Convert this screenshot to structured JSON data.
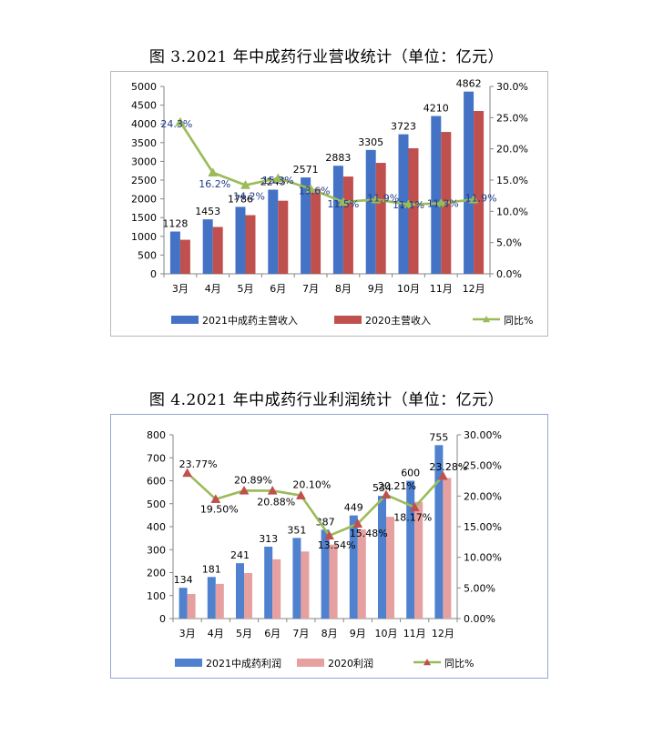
{
  "titles": {
    "chart1": "图 3.2021 年中成药行业营收统计（单位：亿元）",
    "chart2": "图 4.2021 年中成药行业利润统计（单位：亿元）"
  },
  "chart_data": [
    {
      "type": "bar",
      "title": "图 3.2021 年中成药行业营收统计（单位：亿元）",
      "categories": [
        "3月",
        "4月",
        "5月",
        "6月",
        "7月",
        "8月",
        "9月",
        "10月",
        "11月",
        "12月"
      ],
      "series": [
        {
          "name": "2021中成药主营收入",
          "type": "bar",
          "axis": "left",
          "color": "#4472c4",
          "values": [
            1128,
            1453,
            1786,
            2245,
            2571,
            2883,
            3305,
            3723,
            4210,
            4862
          ],
          "labels": [
            "1128",
            "1453",
            "1786",
            "2245",
            "2571",
            "2883",
            "3305",
            "3723",
            "4210",
            "4862"
          ]
        },
        {
          "name": "2020主营收入",
          "type": "bar",
          "axis": "left",
          "color": "#c0504d",
          "values": [
            908,
            1250,
            1565,
            1950,
            2265,
            2595,
            2960,
            3350,
            3785,
            4345
          ]
        },
        {
          "name": "同比%",
          "type": "line",
          "axis": "right",
          "color": "#9bbb59",
          "marker_color": "#9bbb59",
          "values": [
            24.3,
            16.2,
            14.2,
            15.3,
            13.6,
            11.5,
            11.9,
            11.1,
            11.3,
            11.9
          ],
          "labels": [
            "24.3%",
            "16.2%",
            "14.2%",
            "15.3%",
            "13.6%",
            "11.5%",
            "11.9%",
            "11.1%",
            "11.3%",
            "11.9%"
          ]
        }
      ],
      "ylim": [
        0,
        5000
      ],
      "yticks": [
        "0",
        "500",
        "1000",
        "1500",
        "2000",
        "2500",
        "3000",
        "3500",
        "4000",
        "4500",
        "5000"
      ],
      "y2lim": [
        0,
        30
      ],
      "y2ticks": [
        "0.0%",
        "5.0%",
        "10.0%",
        "15.0%",
        "20.0%",
        "25.0%",
        "30.0%"
      ],
      "legend_position": "bottom",
      "grid": false
    },
    {
      "type": "bar",
      "title": "图 4.2021 年中成药行业利润统计（单位：亿元）",
      "categories": [
        "3月",
        "4月",
        "5月",
        "6月",
        "7月",
        "8月",
        "9月",
        "10月",
        "11月",
        "12月"
      ],
      "series": [
        {
          "name": "2021中成药利润",
          "type": "bar",
          "axis": "left",
          "color": "#4f81cf",
          "values": [
            134,
            181,
            241,
            313,
            351,
            387,
            449,
            534,
            600,
            755
          ],
          "labels": [
            "134",
            "181",
            "241",
            "313",
            "351",
            "387",
            "449",
            "534",
            "600",
            "755"
          ]
        },
        {
          "name": "2020利润",
          "type": "bar",
          "axis": "left",
          "color": "#e6a0a0",
          "values": [
            107,
            151,
            198,
            258,
            292,
            322,
            388,
            443,
            508,
            612
          ]
        },
        {
          "name": "同比%",
          "type": "line",
          "axis": "right",
          "color": "#9bbb59",
          "marker_color": "#c0504d",
          "values": [
            23.77,
            19.5,
            20.89,
            20.88,
            20.1,
            13.54,
            15.48,
            20.21,
            18.17,
            23.28
          ],
          "labels": [
            "23.77%",
            "19.50%",
            "20.89%",
            "20.88%",
            "20.10%",
            "13.54%",
            "15.48%",
            "20.21%",
            "18.17%",
            "23.28%"
          ]
        }
      ],
      "ylim": [
        0,
        800
      ],
      "yticks": [
        "0",
        "100",
        "200",
        "300",
        "400",
        "500",
        "600",
        "700",
        "800"
      ],
      "y2lim": [
        0,
        30
      ],
      "y2ticks": [
        "0.00%",
        "5.00%",
        "10.00%",
        "15.00%",
        "20.00%",
        "25.00%",
        "30.00%"
      ],
      "legend_position": "bottom",
      "grid": false
    }
  ]
}
